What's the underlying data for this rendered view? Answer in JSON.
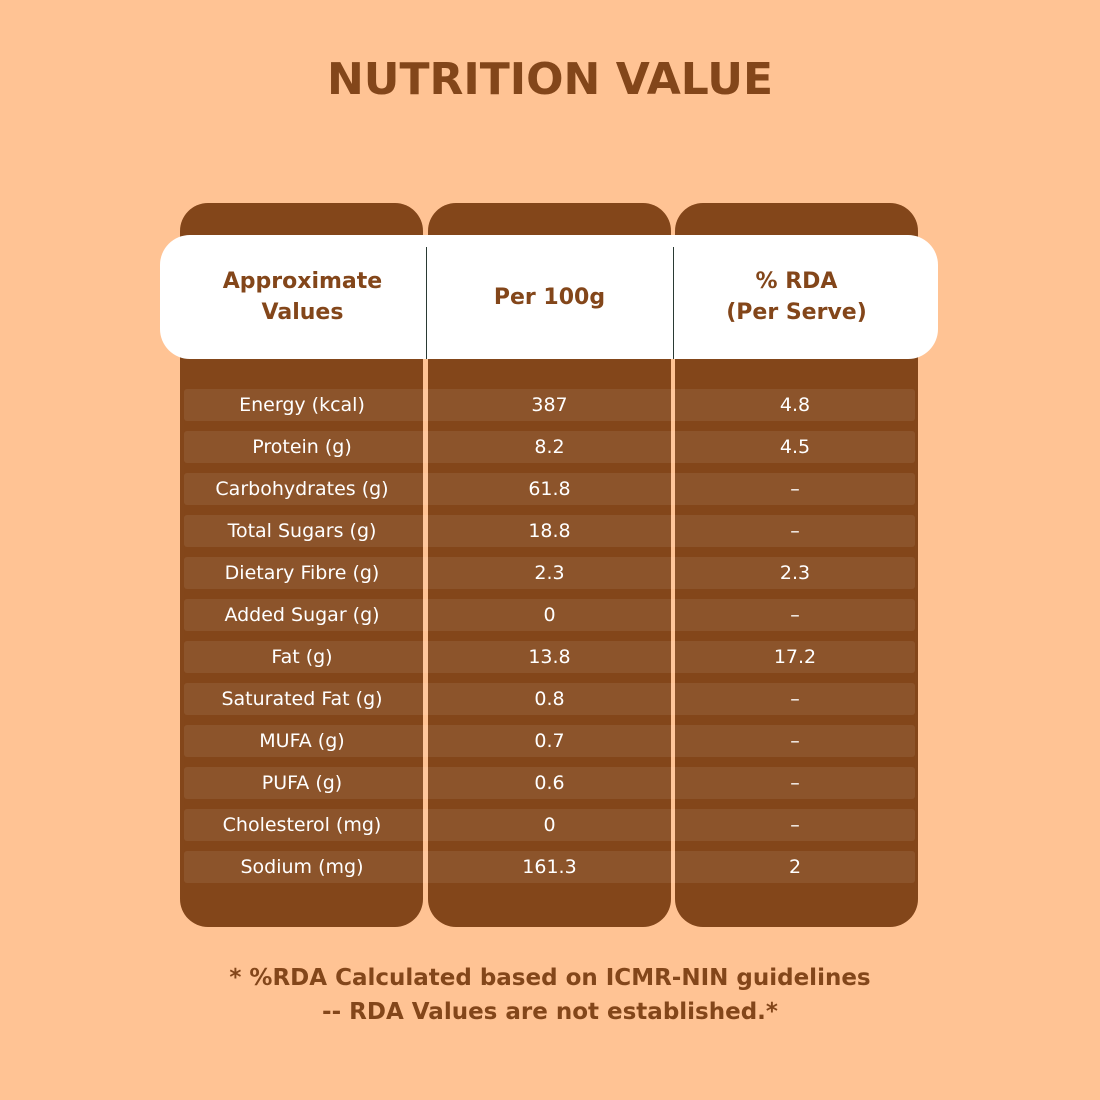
{
  "title": "NUTRITION VALUE",
  "colors": {
    "background": "#FFC394",
    "brown": "#83461A",
    "header": "#FFFFFF"
  },
  "table": {
    "headers": [
      "Approximate\nValues",
      "Per 100g",
      "% RDA\n(Per Serve)"
    ],
    "rows": [
      [
        "Energy (kcal)",
        "387",
        "4.8"
      ],
      [
        "Protein (g)",
        "8.2",
        "4.5"
      ],
      [
        "Carbohydrates (g)",
        "61.8",
        "–"
      ],
      [
        "Total Sugars (g)",
        "18.8",
        "–"
      ],
      [
        "Dietary Fibre (g)",
        "2.3",
        "2.3"
      ],
      [
        "Added Sugar (g)",
        "0",
        "–"
      ],
      [
        "Fat (g)",
        "13.8",
        "17.2"
      ],
      [
        "Saturated Fat (g)",
        "0.8",
        "–"
      ],
      [
        "MUFA (g)",
        "0.7",
        "–"
      ],
      [
        "PUFA (g)",
        "0.6",
        "–"
      ],
      [
        "Cholesterol (mg)",
        "0",
        "–"
      ],
      [
        "Sodium (mg)",
        "161.3",
        "2"
      ]
    ]
  },
  "footnotes": [
    "* %RDA Calculated based on ICMR-NIN guidelines",
    "-- RDA Values are not established.*"
  ]
}
